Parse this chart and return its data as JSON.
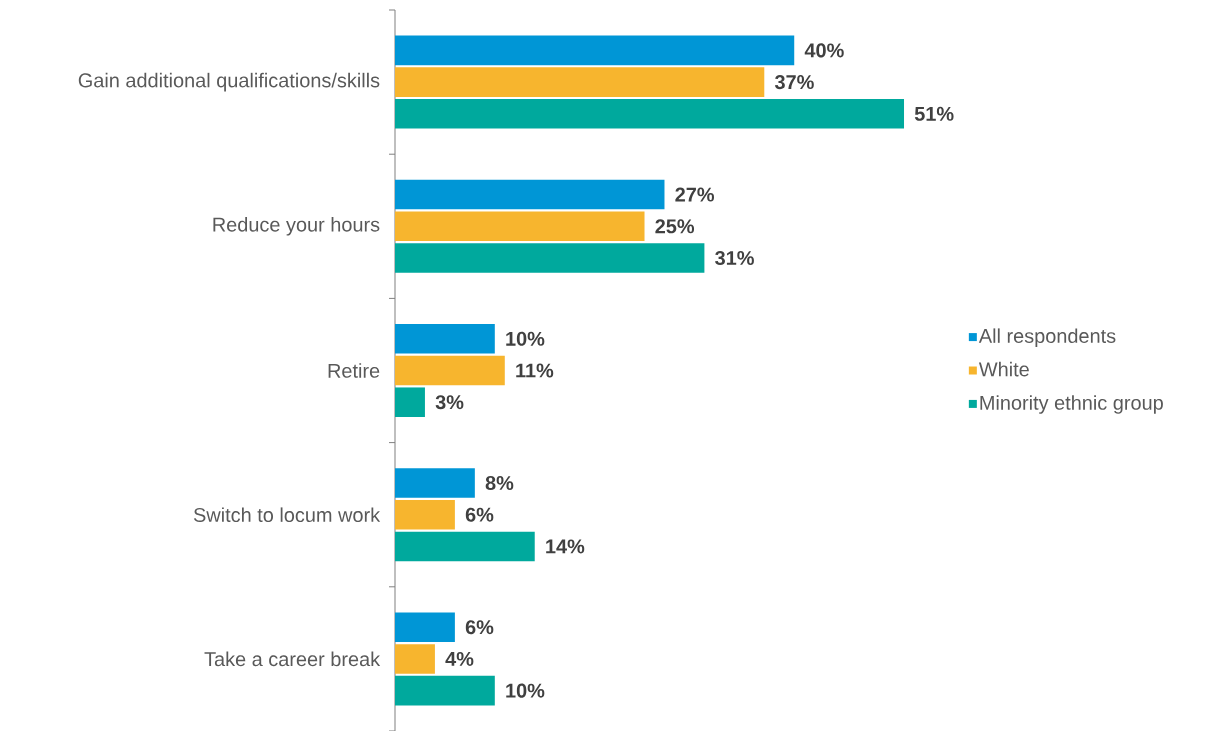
{
  "chart_data": {
    "type": "bar",
    "orientation": "horizontal",
    "legend": "right",
    "categories": [
      "Gain additional qualifications/skills",
      "Reduce your hours",
      "Retire",
      "Switch to locum work",
      "Take a career break"
    ],
    "series": [
      {
        "name": "All respondents",
        "color": "#0096d6",
        "values": [
          40,
          27,
          10,
          8,
          6
        ],
        "value_labels": [
          "40%",
          "27%",
          "10%",
          "8%",
          "6%"
        ]
      },
      {
        "name": "White",
        "color": "#f7b52e",
        "values": [
          37,
          25,
          11,
          6,
          4
        ],
        "value_labels": [
          "37%",
          "25%",
          "11%",
          "6%",
          "4%"
        ]
      },
      {
        "name": "Minority ethnic group",
        "color": "#00a99d",
        "values": [
          51,
          31,
          3,
          14,
          10
        ],
        "value_labels": [
          "51%",
          "31%",
          "3%",
          "14%",
          "10%"
        ]
      }
    ]
  }
}
